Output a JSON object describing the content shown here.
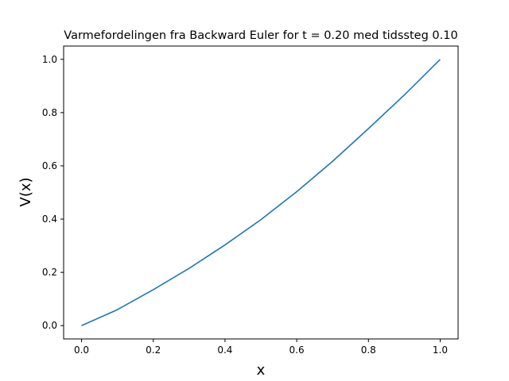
{
  "chart_data": {
    "type": "line",
    "title": "Varmefordelingen fra Backward Euler for t = 0.20 med tidssteg 0.10",
    "xlabel": "x",
    "ylabel": "V(x)",
    "xlim": [
      -0.05,
      1.05
    ],
    "ylim": [
      -0.05,
      1.05
    ],
    "xticks": [
      0.0,
      0.2,
      0.4,
      0.6,
      0.8,
      1.0
    ],
    "xtick_labels": [
      "0.0",
      "0.2",
      "0.4",
      "0.6",
      "0.8",
      "1.0"
    ],
    "yticks": [
      0.0,
      0.2,
      0.4,
      0.6,
      0.8,
      1.0
    ],
    "ytick_labels": [
      "0.0",
      "0.2",
      "0.4",
      "0.6",
      "0.8",
      "1.0"
    ],
    "grid": false,
    "series": [
      {
        "color": "#1f77b4",
        "x": [
          0.0,
          0.1,
          0.2,
          0.3,
          0.4,
          0.5,
          0.6,
          0.7,
          0.8,
          0.9,
          1.0
        ],
        "y": [
          0.0,
          0.06,
          0.135,
          0.215,
          0.303,
          0.398,
          0.503,
          0.617,
          0.74,
          0.866,
          1.0
        ]
      }
    ]
  }
}
